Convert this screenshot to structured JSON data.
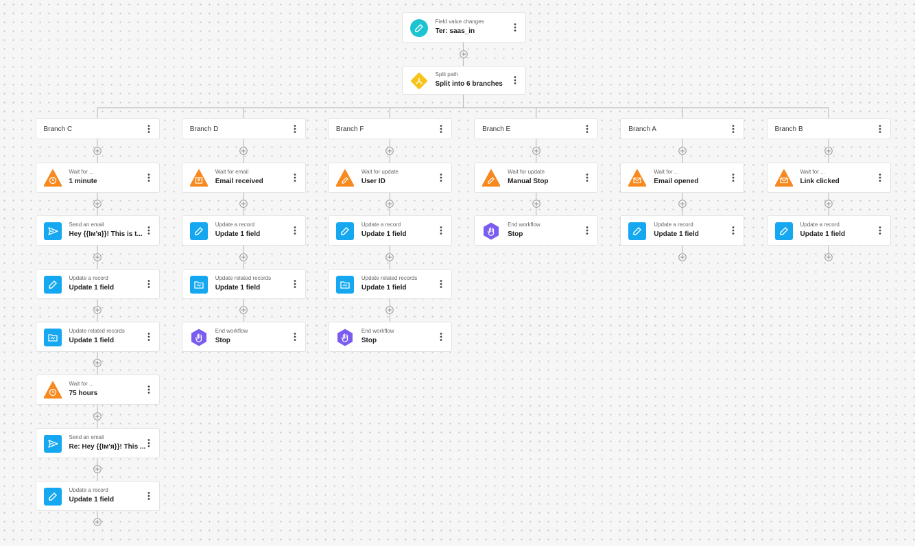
{
  "trigger": {
    "label": "Field value changes",
    "value": "Ter: saas_in",
    "icon": "trigger"
  },
  "split": {
    "label": "Split path",
    "value": "Split into 6 branches",
    "icon": "split"
  },
  "branches": [
    {
      "name": "Branch C",
      "steps": [
        {
          "label": "Wait for ...",
          "value": "1 minute",
          "icon": "wait-clock"
        },
        {
          "label": "Send an email",
          "value": "Hey {{Iм'я}}! This is t...",
          "icon": "send"
        },
        {
          "label": "Update a record",
          "value": "Update 1 field",
          "icon": "edit"
        },
        {
          "label": "Update related records",
          "value": "Update 1 field",
          "icon": "related"
        },
        {
          "label": "Wait for ...",
          "value": "75 hours",
          "icon": "wait-clock"
        },
        {
          "label": "Send an email",
          "value": "Re: Hey {{Iм'я}}! This ...",
          "icon": "send"
        },
        {
          "label": "Update a record",
          "value": "Update 1 field",
          "icon": "edit"
        }
      ]
    },
    {
      "name": "Branch D",
      "steps": [
        {
          "label": "Wait for email",
          "value": "Email received",
          "icon": "wait-inbox"
        },
        {
          "label": "Update a record",
          "value": "Update 1 field",
          "icon": "edit"
        },
        {
          "label": "Update related records",
          "value": "Update 1 field",
          "icon": "related"
        },
        {
          "label": "End workflow",
          "value": "Stop",
          "icon": "end"
        }
      ]
    },
    {
      "name": "Branch F",
      "steps": [
        {
          "label": "Wait for update",
          "value": "User ID",
          "icon": "wait-edit"
        },
        {
          "label": "Update a record",
          "value": "Update 1 field",
          "icon": "edit"
        },
        {
          "label": "Update related records",
          "value": "Update 1 field",
          "icon": "related"
        },
        {
          "label": "End workflow",
          "value": "Stop",
          "icon": "end"
        }
      ]
    },
    {
      "name": "Branch E",
      "steps": [
        {
          "label": "Wait for update",
          "value": "Manual Stop",
          "icon": "wait-edit"
        },
        {
          "label": "End workflow",
          "value": "Stop",
          "icon": "end"
        }
      ]
    },
    {
      "name": "Branch A",
      "steps": [
        {
          "label": "Wait for ...",
          "value": "Email opened",
          "icon": "wait-mail"
        },
        {
          "label": "Update a record",
          "value": "Update 1 field",
          "icon": "edit"
        }
      ]
    },
    {
      "name": "Branch B",
      "steps": [
        {
          "label": "Wait for ...",
          "value": "Link clicked",
          "icon": "wait-mail"
        },
        {
          "label": "Update a record",
          "value": "Update 1 field",
          "icon": "edit"
        }
      ]
    }
  ]
}
